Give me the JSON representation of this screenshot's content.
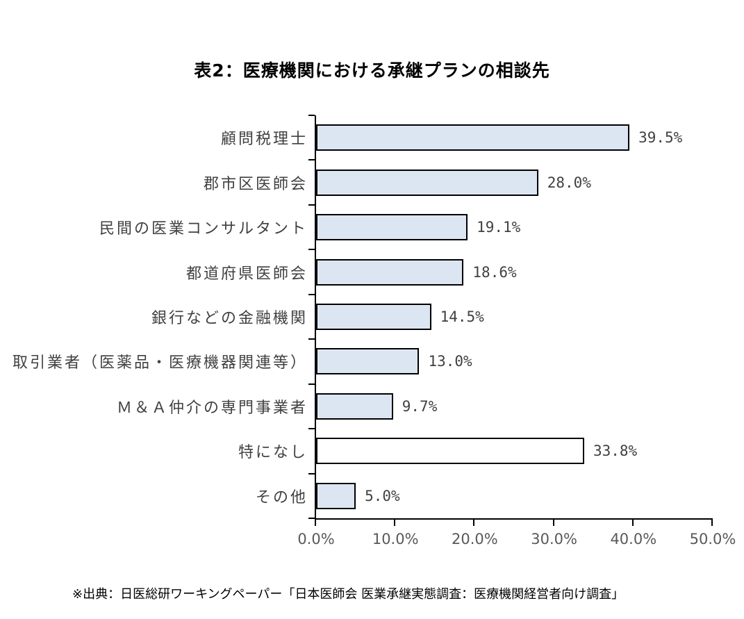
{
  "page": {
    "title": "表2：医療機関における承継プランの相談先",
    "source_note": "※出典：日医総研ワーキングペーパー「日本医師会 医業承継実態調査：医療機関経営者向け調査」"
  },
  "colors": {
    "bar_fill": "#dce6f2",
    "bar_fill_alt": "#ffffff",
    "bar_border": "#000000",
    "axis": "#000000",
    "category_text": "#404040",
    "value_text": "#404040",
    "tick_text": "#595959",
    "title_text": "#000000",
    "source_text": "#000000"
  },
  "chart_data": {
    "type": "bar",
    "orientation": "horizontal",
    "title": "表2：医療機関における承継プランの相談先",
    "categories": [
      "顧問税理士",
      "郡市区医師会",
      "民間の医業コンサルタント",
      "都道府県医師会",
      "銀行などの金融機関",
      "取引業者（医薬品・医療機器関連等）",
      "Ｍ＆Ａ仲介の専門事業者",
      "特になし",
      "その他"
    ],
    "values": [
      39.5,
      28.0,
      19.1,
      18.6,
      14.5,
      13.0,
      9.7,
      33.8,
      5.0
    ],
    "value_labels": [
      "39.5%",
      "28.0%",
      "19.1%",
      "18.6%",
      "14.5%",
      "13.0%",
      "9.7%",
      "33.8%",
      "5.0%"
    ],
    "bar_fills": [
      "#dce6f2",
      "#dce6f2",
      "#dce6f2",
      "#dce6f2",
      "#dce6f2",
      "#dce6f2",
      "#dce6f2",
      "#ffffff",
      "#dce6f2"
    ],
    "xlabel": "",
    "ylabel": "",
    "xlim": [
      0,
      50
    ],
    "x_tick_labels": [
      "0.0%",
      "10.0%",
      "20.0%",
      "30.0%",
      "40.0%",
      "50.0%"
    ],
    "x_tick_step": 10,
    "grid": false,
    "legend": null
  }
}
